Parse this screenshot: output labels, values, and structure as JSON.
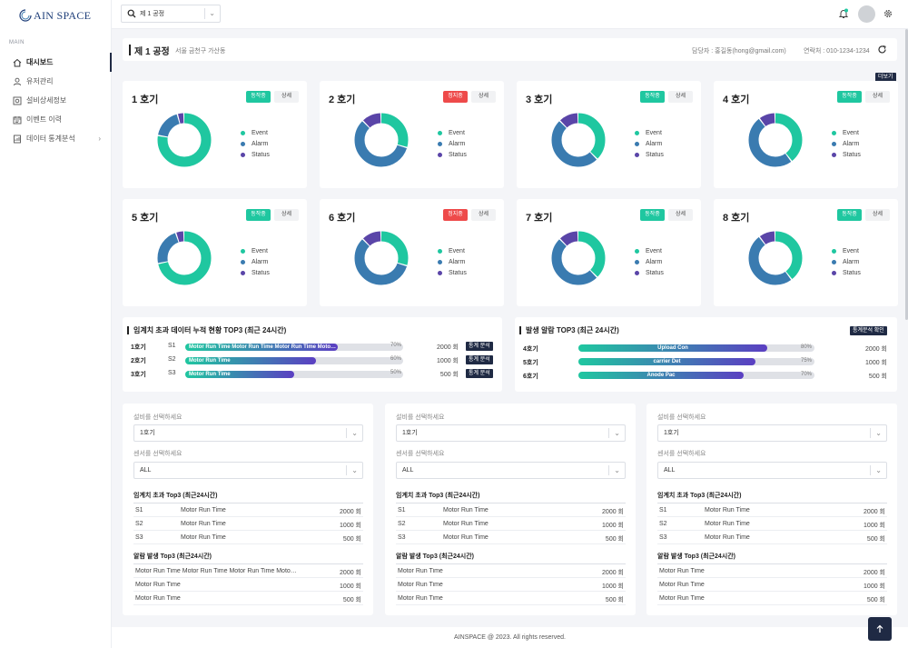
{
  "brand": {
    "logo_text": "AIN SPACE"
  },
  "sidebar": {
    "section": "MAIN",
    "items": [
      {
        "label": "대시보드",
        "icon": "home-icon"
      },
      {
        "label": "유저관리",
        "icon": "user-icon"
      },
      {
        "label": "설비상세정보",
        "icon": "machine-icon"
      },
      {
        "label": "이벤트 이력",
        "icon": "calendar-icon"
      },
      {
        "label": "데이터 통계분석",
        "icon": "chart-file-icon"
      }
    ]
  },
  "header": {
    "factory_value": "제 1 공정"
  },
  "title": {
    "name": "제 1 공정",
    "address": "서울 금천구 가산동",
    "manager": "담당자 : 홍길동(hong@gmail.com)",
    "phone": "연락처 : 010-1234-1234"
  },
  "more_label": "더보기",
  "legend": [
    "Event",
    "Alarm",
    "Status"
  ],
  "colors": {
    "event": "#1fc7a0",
    "alarm": "#3a7bb0",
    "status": "#5a45a8"
  },
  "machines": [
    {
      "name": "1 호기",
      "status": "동작중",
      "state": "run",
      "detail": "상세",
      "values": [
        0.78,
        0.18,
        0.04
      ]
    },
    {
      "name": "2 호기",
      "status": "정지중",
      "state": "stop",
      "detail": "상세",
      "values": [
        0.3,
        0.58,
        0.12
      ]
    },
    {
      "name": "3 호기",
      "status": "동작중",
      "state": "run",
      "detail": "상세",
      "values": [
        0.38,
        0.5,
        0.12
      ]
    },
    {
      "name": "4 호기",
      "status": "동작중",
      "state": "run",
      "detail": "상세",
      "values": [
        0.4,
        0.5,
        0.1
      ]
    },
    {
      "name": "5 호기",
      "status": "동작중",
      "state": "run",
      "detail": "상세",
      "values": [
        0.72,
        0.23,
        0.05
      ]
    },
    {
      "name": "6 호기",
      "status": "정지중",
      "state": "stop",
      "detail": "상세",
      "values": [
        0.3,
        0.58,
        0.12
      ]
    },
    {
      "name": "7 호기",
      "status": "동작중",
      "state": "run",
      "detail": "상세",
      "values": [
        0.38,
        0.5,
        0.12
      ]
    },
    {
      "name": "8 호기",
      "status": "동작중",
      "state": "run",
      "detail": "상세",
      "values": [
        0.4,
        0.5,
        0.1
      ]
    }
  ],
  "threshold_top3": {
    "title": "임계치 초과 데이터 누적 현황 TOP3 (최근 24시간)",
    "rows": [
      {
        "machine": "1호기",
        "sensor": "S1",
        "label": "Motor Run Time Motor Run Time Motor Run Time Motor Run Time",
        "percent": 70,
        "percent_label": "70%",
        "count": "2000 회",
        "button": "통계 분석"
      },
      {
        "machine": "2호기",
        "sensor": "S2",
        "label": "Motor Run Time",
        "percent": 60,
        "percent_label": "60%",
        "count": "1000 회",
        "button": "통계 분석"
      },
      {
        "machine": "3호기",
        "sensor": "S3",
        "label": "Motor Run Time",
        "percent": 50,
        "percent_label": "50%",
        "count": "500 회",
        "button": "통계 분석"
      }
    ]
  },
  "alarm_top3": {
    "title": "발생 알람 TOP3 (최근 24시간)",
    "button": "통계분석 확인",
    "rows": [
      {
        "machine": "4호기",
        "label": "Upload Con",
        "percent": 80,
        "percent_label": "80%",
        "count": "2000 회"
      },
      {
        "machine": "5호기",
        "label": "carrier Det",
        "percent": 75,
        "percent_label": "75%",
        "count": "1000 회"
      },
      {
        "machine": "6호기",
        "label": "Anode Pac",
        "percent": 70,
        "percent_label": "70%",
        "count": "500 회"
      }
    ]
  },
  "filter_cards": [
    {
      "machine_label": "설비를 선택하세요",
      "machine_value": "1호기",
      "sensor_label": "센서를 선택하세요",
      "sensor_value": "ALL",
      "threshold_title": "임계치 초과 Top3 (최근24시간)",
      "threshold_rows": [
        {
          "sensor": "S1",
          "name": "Motor Run Time",
          "count": "2000 회"
        },
        {
          "sensor": "S2",
          "name": "Motor Run Time",
          "count": "1000 회"
        },
        {
          "sensor": "S3",
          "name": "Motor Run Time",
          "count": "500 회"
        }
      ],
      "alarm_title": "알람 발생 Top3 (최근24시간)",
      "alarm_rows": [
        {
          "name": "Motor Run Time Motor Run Time Motor Run Time Motor Run Time",
          "count": "2000 회"
        },
        {
          "name": "Motor Run Time",
          "count": "1000 회"
        },
        {
          "name": "Motor Run Time",
          "count": "500 회"
        }
      ]
    },
    {
      "machine_label": "설비를 선택하세요",
      "machine_value": "1호기",
      "sensor_label": "센서를 선택하세요",
      "sensor_value": "ALL",
      "threshold_title": "임계치 초과 Top3 (최근24시간)",
      "threshold_rows": [
        {
          "sensor": "S1",
          "name": "Motor Run Time",
          "count": "2000 회"
        },
        {
          "sensor": "S2",
          "name": "Motor Run Time",
          "count": "1000 회"
        },
        {
          "sensor": "S3",
          "name": "Motor Run Time",
          "count": "500 회"
        }
      ],
      "alarm_title": "알람 발생 Top3 (최근24시간)",
      "alarm_rows": [
        {
          "name": "Motor Run Time",
          "count": "2000 회"
        },
        {
          "name": "Motor Run Time",
          "count": "1000 회"
        },
        {
          "name": "Motor Run Time",
          "count": "500 회"
        }
      ]
    },
    {
      "machine_label": "설비를 선택하세요",
      "machine_value": "1호기",
      "sensor_label": "센서를 선택하세요",
      "sensor_value": "ALL",
      "threshold_title": "임계치 초과 Top3 (최근24시간)",
      "threshold_rows": [
        {
          "sensor": "S1",
          "name": "Motor Run Time",
          "count": "2000 회"
        },
        {
          "sensor": "S2",
          "name": "Motor Run Time",
          "count": "1000 회"
        },
        {
          "sensor": "S3",
          "name": "Motor Run Time",
          "count": "500 회"
        }
      ],
      "alarm_title": "알람 발생 Top3 (최근24시간)",
      "alarm_rows": [
        {
          "name": "Motor Run Time",
          "count": "2000 회"
        },
        {
          "name": "Motor Run Time",
          "count": "1000 회"
        },
        {
          "name": "Motor Run Time",
          "count": "500 회"
        }
      ]
    }
  ],
  "footer": {
    "text": "AINSPACE @ 2023. All rights reserved."
  }
}
